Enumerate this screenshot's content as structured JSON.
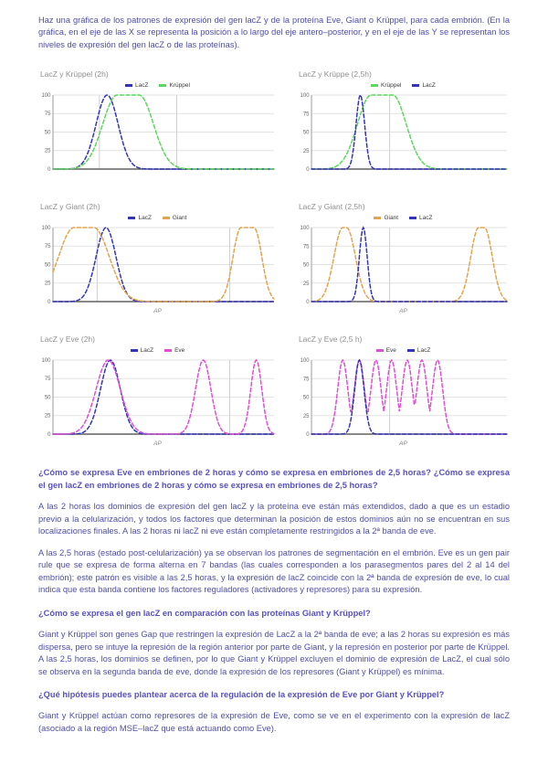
{
  "intro": "Haz una gráfica de los patrones de expresión del gen lacZ y de la proteína Eve, Giant o Krüppel, para cada embrión. (En la gráfica, en el eje de las X se representa la posición a lo largo del eje antero–posterior, y en el eje de las Y se representan los niveles de expresión del gen lacZ o de las proteínas).",
  "qa": {
    "q1": "¿Cómo se expresa Eve en embriones de 2 horas y cómo se expresa en embriones de 2,5 horas? ¿Cómo se expresa el gen lacZ en embriones de 2 horas y cómo se expresa en embriones de 2,5 horas?",
    "a1p1": "A las 2 horas los dominios de expresión del gen lacZ y la proteína eve están más extendidos, dado a que es un estadio previo a la celularización, y todos los factores que determinan la posición de estos dominios aún no se encuentran en sus localizaciones finales. A las 2 horas ni lacZ ni eve están completamente restringidos a la 2ª banda de eve.",
    "a1p2": "A las 2,5 horas (estado post-celularización) ya se observan los patrones de segmentación en el embrión. Eve es un gen pair rule que se expresa de forma alterna en 7 bandas (las cuales corresponden a los parasegmentos pares del 2 al 14 del embrión); este patrón es visible a las 2,5 horas, y la expresión de lacZ coincide con la 2ª banda de expresión de eve, lo cual indica que esta banda contiene los factores reguladores (activadores y represores) para su expresión.",
    "q2": "¿Cómo se expresa el gen lacZ en comparación con las proteínas Giant y Krüppel?",
    "a2": "Giant y Krüppel son genes Gap que restringen la expresión de LacZ a la 2ª banda de eve; a las 2 horas su expresión es más dispersa, pero se intuye la represión de la región anterior por parte de Giant, y la represión en posterior por parte de Krüppel. A las 2,5 horas, los dominios se definen, por lo que Giant y Krüppel excluyen el dominio de expresión de LacZ, el cual sólo se observa en la segunda banda de eve, donde la expresión de los represores (Giant y Krüppel) es mínima.",
    "q3": "¿Qué hipótesis puedes plantear acerca de la regulación de la expresión de Eve por Giant y Krüppel?",
    "a3": "Giant y Krüppel actúan como represores de la expresión de Eve, como se ve en el experimento con la expresión de lacZ (asociado a la región MSE–lacZ que está actuando como Eve)."
  },
  "colors": {
    "lacz": "#3434b8",
    "kruppel": "#5cd65c",
    "giant": "#e2a44e",
    "eve": "#de4fd4",
    "body_text": "#4e4ea4",
    "question_text": "#5751bd"
  },
  "chart_data": [
    {
      "type": "line",
      "title": "LacZ y Krüppel (2h)",
      "x_label": "",
      "xlim": [
        0,
        100
      ],
      "ylim": [
        0,
        100
      ],
      "y_ticks": [
        100,
        75,
        50,
        25,
        0
      ],
      "grid_x_percent": [
        21,
        56
      ],
      "series": [
        {
          "name": "LacZ",
          "color": "#3434b8",
          "dashed": true,
          "peaks": [
            {
              "center": 24.5,
              "sigma": 5,
              "height": 100
            }
          ]
        },
        {
          "name": "Krüppel",
          "color": "#5cd65c",
          "dashed": true,
          "peaks": [
            {
              "center": 34,
              "sigma": 6.5,
              "flat": 5,
              "height": 100
            }
          ]
        }
      ]
    },
    {
      "type": "line",
      "title": "LacZ y Krüppe (2,5h)",
      "x_label": "",
      "xlim": [
        0,
        100
      ],
      "ylim": [
        0,
        100
      ],
      "y_ticks": [
        100,
        75,
        50,
        25,
        0
      ],
      "grid_x_percent": [
        40
      ],
      "series": [
        {
          "name": "Krüppel",
          "color": "#5cd65c",
          "dashed": true,
          "peaks": [
            {
              "center": 36,
              "sigma": 7,
              "flat": 5.5,
              "height": 100
            }
          ]
        },
        {
          "name": "LacZ",
          "color": "#3434b8",
          "dashed": true,
          "peaks": [
            {
              "center": 25,
              "sigma": 2.2,
              "height": 100
            }
          ]
        }
      ]
    },
    {
      "type": "line",
      "title": "LacZ y Giant (2h)",
      "x_label": "AP",
      "xlim": [
        0,
        100
      ],
      "ylim": [
        0,
        100
      ],
      "y_ticks": [
        100,
        75,
        50,
        25,
        0
      ],
      "grid_x_percent": [
        20,
        80
      ],
      "series": [
        {
          "name": "LacZ",
          "color": "#3434b8",
          "dashed": true,
          "peaks": [
            {
              "center": 24,
              "sigma": 4.5,
              "height": 100
            }
          ]
        },
        {
          "name": "Giant",
          "color": "#e2a44e",
          "dashed": true,
          "peaks": [
            {
              "center": 14,
              "sigma": 7,
              "flat": 4.5,
              "height": 100
            },
            {
              "center": 88,
              "sigma": 3.5,
              "flat": 3,
              "height": 100
            }
          ]
        }
      ]
    },
    {
      "type": "line",
      "title": "LacZ y Giant (2,5h)",
      "x_label": "AP",
      "xlim": [
        0,
        100
      ],
      "ylim": [
        0,
        100
      ],
      "y_ticks": [
        100,
        75,
        50,
        25,
        0
      ],
      "grid_x_percent": [
        40
      ],
      "series": [
        {
          "name": "Giant",
          "color": "#e2a44e",
          "dashed": true,
          "peaks": [
            {
              "center": 17,
              "sigma": 4.5,
              "flat": 1,
              "height": 100
            },
            {
              "center": 87,
              "sigma": 4,
              "flat": 1.5,
              "height": 100
            }
          ]
        },
        {
          "name": "LacZ",
          "color": "#3434b8",
          "dashed": true,
          "peaks": [
            {
              "center": 26.5,
              "sigma": 2,
              "height": 100
            }
          ]
        }
      ]
    },
    {
      "type": "line",
      "title": "LacZ y Eve (2h)",
      "x_label": "AP",
      "xlim": [
        0,
        100
      ],
      "ylim": [
        0,
        100
      ],
      "y_ticks": [
        100,
        75,
        50,
        25,
        0
      ],
      "grid_x_percent": [
        80
      ],
      "series": [
        {
          "name": "LacZ",
          "color": "#3434b8",
          "dashed": true,
          "peaks": [
            {
              "center": 26,
              "sigma": 4.5,
              "height": 100
            }
          ]
        },
        {
          "name": "Eve",
          "color": "#de4fd4",
          "dashed": true,
          "peaks": [
            {
              "center": 25,
              "sigma": 5.5,
              "height": 100
            },
            {
              "center": 68,
              "sigma": 3.5,
              "height": 100
            },
            {
              "center": 92,
              "sigma": 2.5,
              "height": 100
            }
          ]
        }
      ]
    },
    {
      "type": "line",
      "title": "LacZ y Eve (2,5 h)",
      "x_label": "AP",
      "xlim": [
        0,
        100
      ],
      "ylim": [
        0,
        100
      ],
      "y_ticks": [
        100,
        75,
        50,
        25,
        0
      ],
      "grid_x_percent": [
        40
      ],
      "series": [
        {
          "name": "Eve",
          "color": "#de4fd4",
          "dashed": true,
          "peaks": [
            {
              "center": 16,
              "sigma": 2.6,
              "height": 100
            },
            {
              "center": 24.5,
              "sigma": 2.6,
              "height": 100
            },
            {
              "center": 33,
              "sigma": 2.6,
              "height": 100
            },
            {
              "center": 41,
              "sigma": 2.6,
              "height": 100
            },
            {
              "center": 49,
              "sigma": 2.6,
              "height": 100
            },
            {
              "center": 56.5,
              "sigma": 2.6,
              "height": 100
            },
            {
              "center": 64.5,
              "sigma": 2.6,
              "height": 100
            }
          ]
        },
        {
          "name": "LacZ",
          "color": "#3434b8",
          "dashed": true,
          "peaks": [
            {
              "center": 24.5,
              "sigma": 2.4,
              "height": 100
            }
          ]
        }
      ]
    }
  ]
}
